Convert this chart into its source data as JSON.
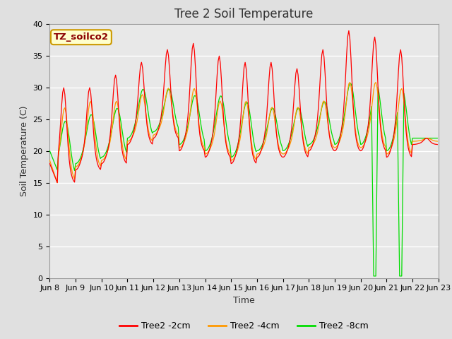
{
  "title": "Tree 2 Soil Temperature",
  "xlabel": "Time",
  "ylabel": "Soil Temperature (C)",
  "ylim": [
    0,
    40
  ],
  "x_tick_labels": [
    "Jun 8",
    "Jun 9",
    "Jun 10",
    "Jun 11",
    "Jun 12",
    "Jun 13",
    "Jun 14",
    "Jun 15",
    "Jun 16",
    "Jun 17",
    "Jun 18",
    "Jun 19",
    "Jun 20",
    "Jun 21",
    "Jun 22",
    "Jun 23"
  ],
  "annotation_text": "TZ_soilco2",
  "annotation_bg": "#ffffcc",
  "annotation_border": "#cc9900",
  "bg_color": "#e8e8e8",
  "grid_color": "#ffffff",
  "colors": {
    "2cm": "#ff0000",
    "4cm": "#ff9900",
    "8cm": "#00dd00"
  },
  "legend_labels": [
    "Tree2 -2cm",
    "Tree2 -4cm",
    "Tree2 -8cm"
  ],
  "title_fontsize": 12,
  "axis_label_fontsize": 9,
  "tick_fontsize": 8
}
